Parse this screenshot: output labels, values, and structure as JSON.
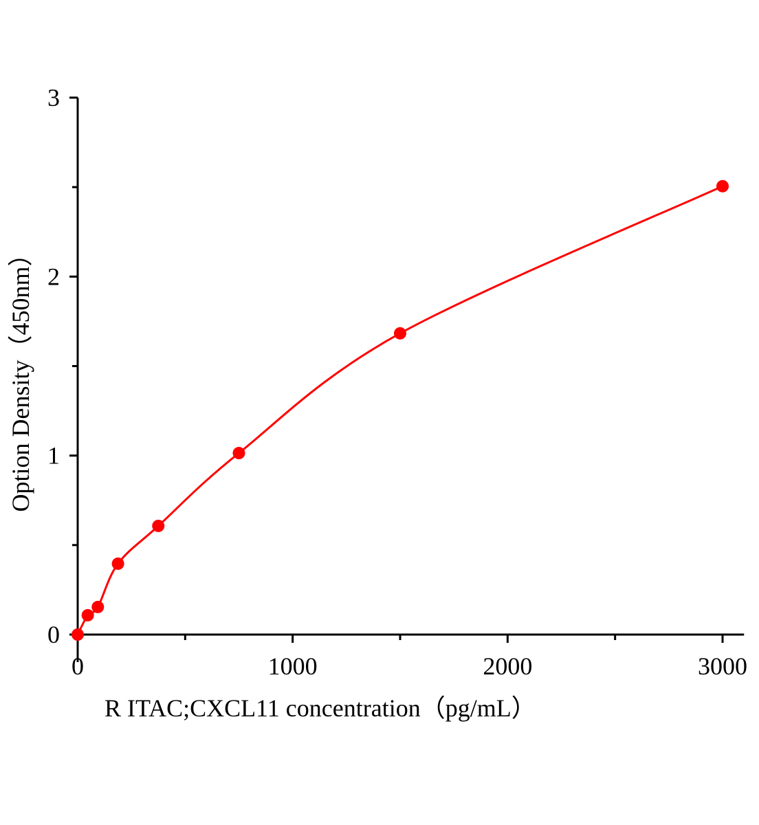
{
  "chart_data": {
    "type": "scatter",
    "title": "",
    "xlabel": "R ITAC;CXCL11  concentration（pg/mL）",
    "ylabel": "Option Density（450nm）",
    "xlim": [
      0,
      3100
    ],
    "ylim": [
      0,
      3
    ],
    "xticks": [
      0,
      1000,
      2000,
      3000
    ],
    "xtick_labels": [
      "0",
      "1000",
      "2000",
      "3000"
    ],
    "yticks": [
      0,
      1,
      2,
      3
    ],
    "ytick_labels": [
      "0",
      "1",
      "2",
      "3"
    ],
    "grid": false,
    "colors": {
      "series": "#ff0000",
      "axis": "#000000"
    },
    "series": [
      {
        "x": [
          0,
          46.875,
          93.75,
          187.5,
          375,
          750,
          1500,
          3000
        ],
        "y": [
          0.0,
          0.108,
          0.154,
          0.396,
          0.607,
          1.014,
          1.683,
          2.505
        ],
        "fit_curve": true
      }
    ]
  }
}
